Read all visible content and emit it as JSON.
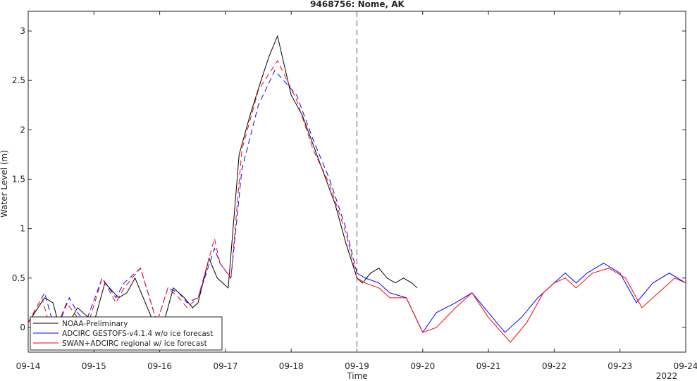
{
  "chart_data": {
    "type": "line",
    "title": "9468756: Nome, AK",
    "xlabel": "Time",
    "ylabel": "Water Level (m)",
    "x_ticks": [
      "09-14",
      "09-15",
      "09-16",
      "09-17",
      "09-18",
      "09-19",
      "09-20",
      "09-21",
      "09-22",
      "09-23",
      "09-24"
    ],
    "x_secondary_label": "2022",
    "xlim": [
      "2022-09-14",
      "2022-09-24"
    ],
    "y_ticks": [
      0,
      0.5,
      1,
      1.5,
      2,
      2.5,
      3
    ],
    "ylim": [
      -0.25,
      3.2
    ],
    "grid": false,
    "legend_position": "bottom-left",
    "annotation": {
      "type": "vertical-dashed-line",
      "x": "2022-09-19"
    },
    "series": [
      {
        "name": "NOAA-Preliminary",
        "color": "#000000",
        "style": "solid",
        "x": [
          "2022-09-14 00:00",
          "2022-09-14 06:00",
          "2022-09-14 09:00",
          "2022-09-14 13:00",
          "2022-09-14 15:00",
          "2022-09-14 18:00",
          "2022-09-15 00:00",
          "2022-09-15 04:00",
          "2022-09-15 09:00",
          "2022-09-15 12:00",
          "2022-09-15 15:00",
          "2022-09-15 18:00",
          "2022-09-16 00:00",
          "2022-09-16 05:00",
          "2022-09-16 09:00",
          "2022-09-16 12:00",
          "2022-09-16 14:00",
          "2022-09-16 18:00",
          "2022-09-16 21:00",
          "2022-09-17 01:00",
          "2022-09-17 05:00",
          "2022-09-17 09:00",
          "2022-09-17 13:00",
          "2022-09-17 16:00",
          "2022-09-17 19:00",
          "2022-09-18 00:00",
          "2022-09-18 04:00",
          "2022-09-18 08:00",
          "2022-09-18 12:00",
          "2022-09-18 16:00",
          "2022-09-18 20:00",
          "2022-09-19 00:00",
          "2022-09-19 02:00",
          "2022-09-19 05:00",
          "2022-09-19 08:00",
          "2022-09-19 11:00",
          "2022-09-19 14:00",
          "2022-09-19 17:00",
          "2022-09-19 20:00",
          "2022-09-19 22:00"
        ],
        "y": [
          0.05,
          0.3,
          0.25,
          -0.15,
          0.05,
          0.2,
          0.05,
          0.45,
          0.3,
          0.35,
          0.5,
          0.3,
          -0.1,
          0.4,
          0.3,
          0.2,
          0.25,
          0.7,
          0.5,
          0.4,
          1.75,
          2.15,
          2.5,
          2.75,
          2.95,
          2.35,
          2.15,
          1.85,
          1.55,
          1.25,
          0.85,
          0.5,
          0.45,
          0.55,
          0.6,
          0.5,
          0.45,
          0.5,
          0.45,
          0.4
        ]
      },
      {
        "name": "ADCIRC GESTOFS-v4.1.4 w/o ice forecast",
        "color": "#0000ff",
        "style": "dashed-then-solid",
        "x": [
          "2022-09-14 00:00",
          "2022-09-14 06:00",
          "2022-09-14 10:00",
          "2022-09-14 15:00",
          "2022-09-14 18:00",
          "2022-09-14 21:00",
          "2022-09-15 03:00",
          "2022-09-15 08:00",
          "2022-09-15 11:00",
          "2022-09-15 17:00",
          "2022-09-15 23:00",
          "2022-09-16 03:00",
          "2022-09-16 07:00",
          "2022-09-16 10:00",
          "2022-09-16 14:00",
          "2022-09-16 20:00",
          "2022-09-16 22:00",
          "2022-09-17 02:00",
          "2022-09-17 06:00",
          "2022-09-17 12:00",
          "2022-09-17 18:00",
          "2022-09-18 02:00",
          "2022-09-18 08:00",
          "2022-09-18 14:00",
          "2022-09-18 20:00",
          "2022-09-19 00:00",
          "2022-09-19 03:00",
          "2022-09-19 08:00",
          "2022-09-19 12:00",
          "2022-09-19 18:00",
          "2022-09-20 00:00",
          "2022-09-20 05:00",
          "2022-09-20 12:00",
          "2022-09-20 18:00",
          "2022-09-21 00:00",
          "2022-09-21 06:00",
          "2022-09-21 12:00",
          "2022-09-21 18:00",
          "2022-09-22 00:00",
          "2022-09-22 04:00",
          "2022-09-22 08:00",
          "2022-09-22 12:00",
          "2022-09-22 18:00",
          "2022-09-23 00:00",
          "2022-09-23 06:00",
          "2022-09-23 12:00",
          "2022-09-23 18:00",
          "2022-09-24 00:00"
        ],
        "y": [
          0.05,
          0.35,
          -0.05,
          0.3,
          0.15,
          0.05,
          0.5,
          0.3,
          0.45,
          0.6,
          0.05,
          0.4,
          0.35,
          0.25,
          0.3,
          0.8,
          0.65,
          0.5,
          1.6,
          2.25,
          2.6,
          2.35,
          1.9,
          1.5,
          1.0,
          0.55,
          0.5,
          0.45,
          0.35,
          0.3,
          -0.05,
          0.15,
          0.25,
          0.35,
          0.15,
          -0.05,
          0.1,
          0.3,
          0.45,
          0.55,
          0.45,
          0.55,
          0.65,
          0.55,
          0.25,
          0.45,
          0.55,
          0.45
        ]
      },
      {
        "name": "SWAN+ADCIRC regional w/ ice forecast",
        "color": "#ff0000",
        "style": "dashed-then-solid",
        "x": [
          "2022-09-14 00:00",
          "2022-09-14 05:00",
          "2022-09-14 09:00",
          "2022-09-14 14:00",
          "2022-09-14 18:00",
          "2022-09-14 21:00",
          "2022-09-15 03:00",
          "2022-09-15 08:00",
          "2022-09-15 11:00",
          "2022-09-15 17:00",
          "2022-09-15 23:00",
          "2022-09-16 03:00",
          "2022-09-16 07:00",
          "2022-09-16 10:00",
          "2022-09-16 14:00",
          "2022-09-16 20:00",
          "2022-09-16 22:00",
          "2022-09-17 02:00",
          "2022-09-17 06:00",
          "2022-09-17 12:00",
          "2022-09-17 19:00",
          "2022-09-18 02:00",
          "2022-09-18 08:00",
          "2022-09-18 14:00",
          "2022-09-18 20:00",
          "2022-09-19 00:00",
          "2022-09-19 03:00",
          "2022-09-19 08:00",
          "2022-09-19 12:00",
          "2022-09-19 18:00",
          "2022-09-20 00:00",
          "2022-09-20 05:00",
          "2022-09-20 12:00",
          "2022-09-20 18:00",
          "2022-09-21 00:00",
          "2022-09-21 08:00",
          "2022-09-21 14:00",
          "2022-09-21 20:00",
          "2022-09-22 00:00",
          "2022-09-22 04:00",
          "2022-09-22 08:00",
          "2022-09-22 14:00",
          "2022-09-22 20:00",
          "2022-09-23 02:00",
          "2022-09-23 08:00",
          "2022-09-23 14:00",
          "2022-09-23 20:00",
          "2022-09-24 00:00"
        ],
        "y": [
          0.05,
          0.3,
          -0.1,
          0.25,
          0.1,
          -0.05,
          0.5,
          0.25,
          0.4,
          0.6,
          0.05,
          0.4,
          0.3,
          0.2,
          0.3,
          0.9,
          0.65,
          0.5,
          1.8,
          2.4,
          2.7,
          2.3,
          1.8,
          1.45,
          0.95,
          0.5,
          0.45,
          0.4,
          0.3,
          0.3,
          -0.05,
          0.0,
          0.2,
          0.35,
          0.1,
          -0.15,
          0.05,
          0.35,
          0.45,
          0.5,
          0.4,
          0.55,
          0.6,
          0.5,
          0.2,
          0.35,
          0.5,
          0.45
        ]
      }
    ]
  }
}
